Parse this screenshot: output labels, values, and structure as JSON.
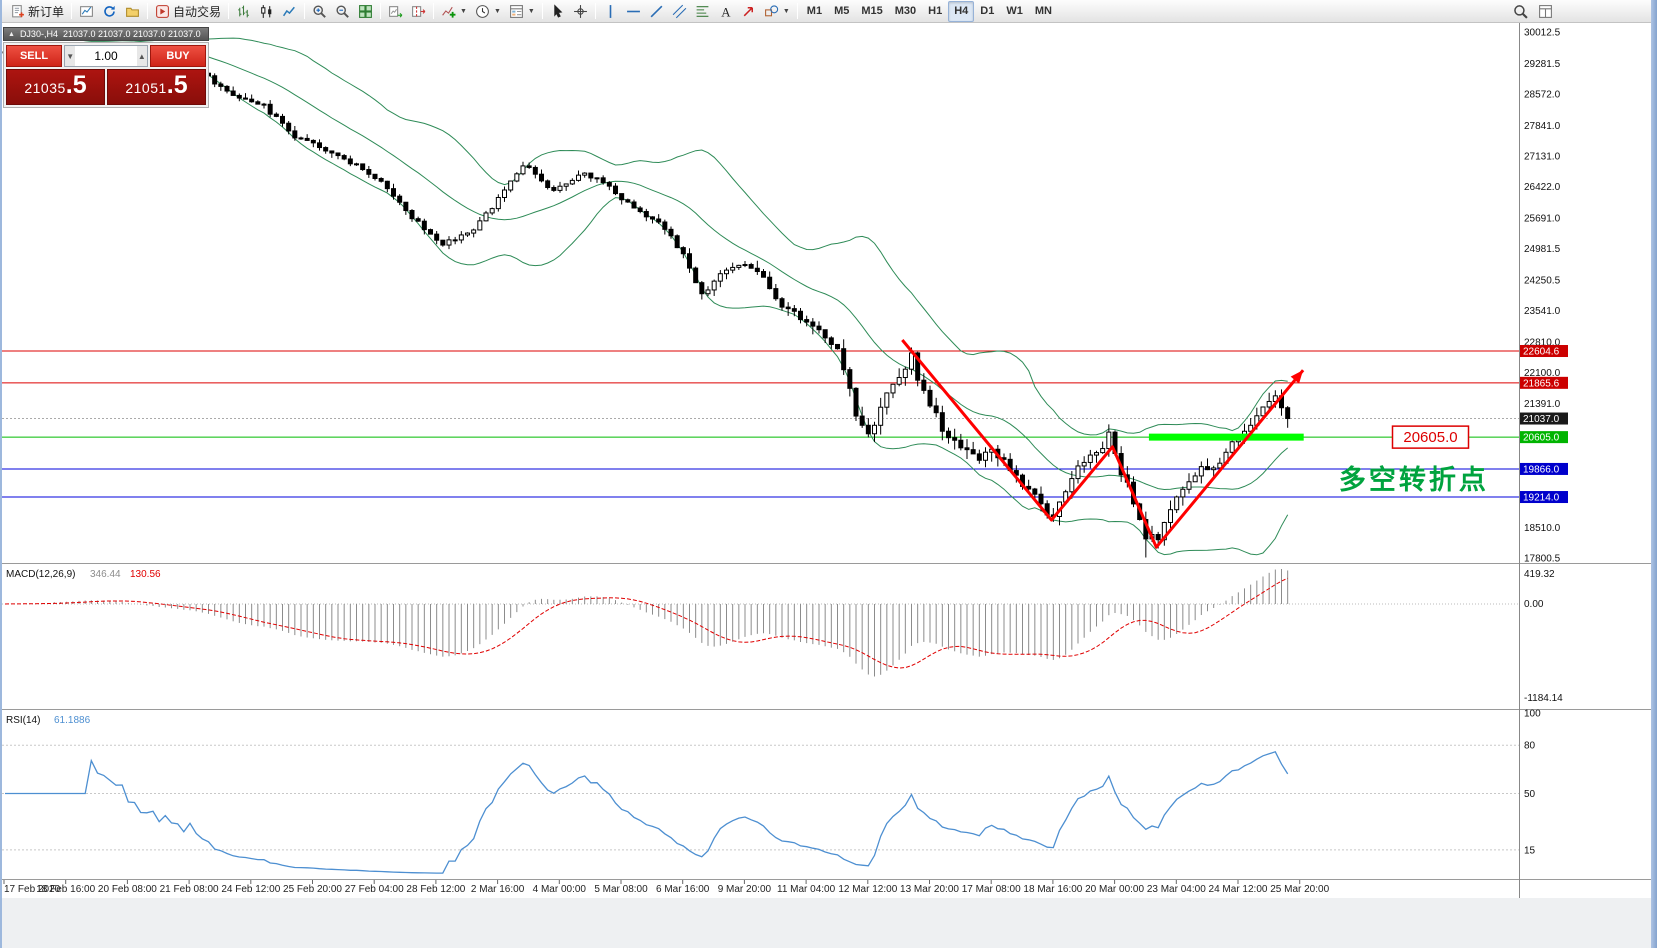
{
  "toolbar": {
    "buttons_groups": [
      [
        {
          "name": "new-order-button",
          "icon": "new-order",
          "label": "新订单"
        }
      ],
      [
        {
          "name": "new-chart-button",
          "icon": "new-chart"
        },
        {
          "name": "refresh-button",
          "icon": "refresh"
        },
        {
          "name": "profiles-button",
          "icon": "profiles"
        }
      ],
      [
        {
          "name": "auto-trading-button",
          "icon": "auto-trading",
          "label": "自动交易"
        }
      ],
      [
        {
          "name": "bar-chart-button",
          "icon": "bars"
        },
        {
          "name": "candlestick-chart-button",
          "icon": "candles"
        },
        {
          "name": "line-chart-button",
          "icon": "line-chart"
        }
      ],
      [
        {
          "name": "zoom-in-button",
          "icon": "zoom-in"
        },
        {
          "name": "zoom-out-button",
          "icon": "zoom-out"
        },
        {
          "name": "tile-windows-button",
          "icon": "tile-windows"
        }
      ],
      [
        {
          "name": "auto-scroll-button",
          "icon": "auto-scroll"
        },
        {
          "name": "chart-shift-button",
          "icon": "chart-shift"
        }
      ],
      [
        {
          "name": "indicators-button",
          "icon": "indicators",
          "caret": true
        },
        {
          "name": "periods-button",
          "icon": "periods",
          "caret": true
        },
        {
          "name": "templates-button",
          "icon": "templates",
          "caret": true
        }
      ],
      [
        {
          "name": "cursor-button",
          "icon": "cursor"
        },
        {
          "name": "crosshair-button",
          "icon": "crosshair"
        }
      ],
      [
        {
          "name": "vertical-line-button",
          "icon": "vline"
        },
        {
          "name": "horizontal-line-button",
          "icon": "hline"
        },
        {
          "name": "trendline-button",
          "icon": "trendline"
        },
        {
          "name": "channel-button",
          "icon": "channel"
        },
        {
          "name": "fibonacci-button",
          "icon": "fibonacci"
        },
        {
          "name": "text-label-button",
          "icon": "text"
        },
        {
          "name": "arrow-tool-button",
          "icon": "arrow"
        },
        {
          "name": "shapes-button",
          "icon": "shapes",
          "caret": true
        }
      ],
      [
        {
          "name": "tf-m1-button",
          "label": "M1",
          "tf": true
        },
        {
          "name": "tf-m5-button",
          "label": "M5",
          "tf": true
        },
        {
          "name": "tf-m15-button",
          "label": "M15",
          "tf": true
        },
        {
          "name": "tf-m30-button",
          "label": "M30",
          "tf": true
        },
        {
          "name": "tf-h1-button",
          "label": "H1",
          "tf": true
        },
        {
          "name": "tf-h4-button",
          "label": "H4",
          "tf": true,
          "active": true
        },
        {
          "name": "tf-d1-button",
          "label": "D1",
          "tf": true
        },
        {
          "name": "tf-w1-button",
          "label": "W1",
          "tf": true
        },
        {
          "name": "tf-mn-button",
          "label": "MN",
          "tf": true
        }
      ]
    ],
    "right_buttons": [
      {
        "name": "search-button",
        "icon": "search"
      },
      {
        "name": "data-window-button",
        "icon": "data-window"
      }
    ]
  },
  "chart": {
    "title": "DJ30-,H4",
    "ohlc": "21037.0 21037.0 21037.0 21037.0"
  },
  "quote_panel": {
    "sell_label": "SELL",
    "buy_label": "BUY",
    "volume": "1.00",
    "sell_price_main": "21035",
    "sell_price_frac": ".5",
    "buy_price_main": "21051",
    "buy_price_frac": ".5"
  },
  "chart_data": {
    "type": "candlestick",
    "symbol": "DJ30-",
    "timeframe": "H4",
    "n_candles": 209,
    "current_price": 21037.0,
    "swing_points": [
      [
        0,
        29550
      ],
      [
        14,
        29750
      ],
      [
        30,
        29250
      ],
      [
        36,
        28650
      ],
      [
        42,
        28300
      ],
      [
        47,
        27600
      ],
      [
        52,
        27300
      ],
      [
        57,
        26900
      ],
      [
        62,
        26400
      ],
      [
        66,
        25700
      ],
      [
        71,
        25100
      ],
      [
        76,
        25400
      ],
      [
        81,
        26300
      ],
      [
        84,
        26950
      ],
      [
        89,
        26300
      ],
      [
        94,
        26750
      ],
      [
        97,
        26500
      ],
      [
        100,
        26150
      ],
      [
        104,
        25750
      ],
      [
        107,
        25450
      ],
      [
        110,
        24850
      ],
      [
        113,
        23950
      ],
      [
        117,
        24450
      ],
      [
        120,
        24550
      ],
      [
        123,
        24350
      ],
      [
        126,
        23650
      ],
      [
        130,
        23300
      ],
      [
        133,
        22950
      ],
      [
        135,
        22550
      ],
      [
        138,
        21200
      ],
      [
        140,
        20700
      ],
      [
        143,
        21550
      ],
      [
        145,
        21900
      ],
      [
        147,
        22480
      ],
      [
        148,
        21900
      ],
      [
        151,
        21100
      ],
      [
        153,
        20600
      ],
      [
        156,
        20350
      ],
      [
        158,
        20100
      ],
      [
        160,
        20400
      ],
      [
        163,
        19900
      ],
      [
        165,
        19500
      ],
      [
        168,
        19100
      ],
      [
        170,
        18700
      ],
      [
        172,
        19300
      ],
      [
        174,
        19900
      ],
      [
        177,
        20200
      ],
      [
        179,
        20650
      ],
      [
        181,
        19800
      ],
      [
        183,
        19100
      ],
      [
        185,
        18300
      ],
      [
        187,
        18250
      ],
      [
        189,
        18900
      ],
      [
        191,
        19400
      ],
      [
        194,
        20000
      ],
      [
        196,
        19900
      ],
      [
        199,
        20400
      ],
      [
        201,
        20700
      ],
      [
        203,
        21100
      ],
      [
        206,
        21500
      ],
      [
        208,
        21037
      ]
    ],
    "bollinger": {
      "period": 20,
      "deviation": 2,
      "color": "#2e8b57"
    },
    "price_axis_ticks": [
      "30012.5",
      "29281.5",
      "28572.0",
      "27841.0",
      "27131.0",
      "26422.0",
      "25691.0",
      "24981.5",
      "24250.5",
      "23541.0",
      "22810.0",
      "22100.0",
      "21391.0",
      "18510.0",
      "17800.5"
    ],
    "price_markers": [
      {
        "value": "22604.6",
        "price": 22604.6,
        "bg": "#cc0000"
      },
      {
        "value": "21865.6",
        "price": 21865.6,
        "bg": "#cc0000"
      },
      {
        "value": "21037.0",
        "price": 21037.0,
        "bg": "#1a1a1a"
      },
      {
        "value": "20605.0",
        "price": 20605.0,
        "bg": "#00b400"
      },
      {
        "value": "19866.0",
        "price": 19866.0,
        "bg": "#0000cc"
      },
      {
        "value": "19214.0",
        "price": 19214.0,
        "bg": "#0000cc"
      }
    ],
    "hlines": [
      {
        "price": 22604.6,
        "color": "#dd0000"
      },
      {
        "price": 21865.6,
        "color": "#dd0000"
      },
      {
        "price": 20605.0,
        "color": "#00bb00"
      },
      {
        "price": 19866.0,
        "color": "#0000dd"
      },
      {
        "price": 19214.0,
        "color": "#0000dd"
      }
    ],
    "highlight_segment": {
      "price": 20605.0,
      "i0": 185.5,
      "i1": 210.6,
      "color": "#00ff00"
    },
    "trend_arrow": {
      "color": "#ff0000",
      "points": [
        [
          145.5,
          22860
        ],
        [
          169.7,
          18680
        ],
        [
          179.6,
          20380
        ],
        [
          186.7,
          18050
        ],
        [
          210.5,
          22160
        ]
      ]
    },
    "annotations": {
      "price_label": {
        "text": "20605.0",
        "i": 225,
        "price": 20605,
        "color": "#dd0000"
      },
      "cn_text": {
        "text": "多空转折点",
        "i": 216.3,
        "price": 19400,
        "color": "#00a33e"
      }
    },
    "macd": {
      "label": "MACD(12,26,9)",
      "main_value": "346.44",
      "signal_value": "130.56",
      "axis": [
        "419.32",
        "0.00",
        "-1184.14"
      ],
      "histogram_color": "#8c8c8c",
      "signal_color": "#e00000"
    },
    "rsi": {
      "label": "RSI(14)",
      "value": "61.1886",
      "axis": [
        "100",
        "80",
        "50",
        "15"
      ],
      "levels": [
        80,
        50,
        15
      ],
      "line_color": "#4d8fd1"
    },
    "time_axis": [
      "17 Feb 2020",
      "18 Feb 16:00",
      "20 Feb 08:00",
      "21 Feb 08:00",
      "24 Feb 12:00",
      "25 Feb 20:00",
      "27 Feb 04:00",
      "28 Feb 12:00",
      "2 Mar 16:00",
      "4 Mar 00:00",
      "5 Mar 08:00",
      "6 Mar 16:00",
      "9 Mar 20:00",
      "11 Mar 04:00",
      "12 Mar 12:00",
      "13 Mar 20:00",
      "17 Mar 08:00",
      "18 Mar 16:00",
      "20 Mar 00:00",
      "23 Mar 04:00",
      "24 Mar 12:00",
      "25 Mar 20:00"
    ]
  }
}
